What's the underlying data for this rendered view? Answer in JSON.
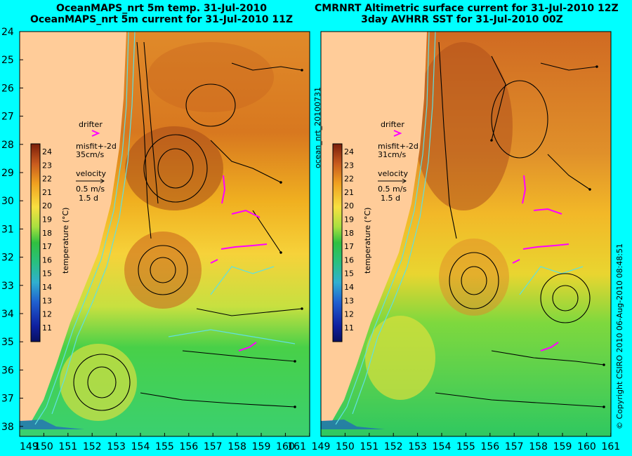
{
  "panels": [
    {
      "title_line1": "OceanMAPS_nrt 5m temp. 31-Jul-2010",
      "title_line2": "OceanMAPS_nrt 5m current for 31-Jul-2010 11Z",
      "drifter_label": "drifter",
      "misfit_label": "misfit+-2d",
      "misfit_speed": "35cm/s",
      "velocity_label": "velocity",
      "velocity_scale": "0.5 m/s",
      "velocity_time": "1.5 d"
    },
    {
      "title_line1": "CMRNRT Altimetric surface current for 31-Jul-2010 12Z",
      "title_line2": "3day AVHRR SST for 31-Jul-2010 00Z",
      "drifter_label": "drifter",
      "misfit_label": "misfit+-2d",
      "misfit_speed": "31cm/s",
      "velocity_label": "velocity",
      "velocity_scale": "0.5 m/s",
      "velocity_time": "1.5 d"
    }
  ],
  "colorbar": {
    "axis_label": "temperature (°C)",
    "ticks": [
      "24",
      "23",
      "22",
      "21",
      "20",
      "19",
      "18",
      "17",
      "16",
      "15",
      "14",
      "13",
      "12",
      "11"
    ]
  },
  "lat_ticks": [
    "24",
    "25",
    "26",
    "27",
    "28",
    "29",
    "30",
    "31",
    "32",
    "33",
    "34",
    "35",
    "36",
    "37",
    "38"
  ],
  "lon_ticks": [
    "149",
    "150",
    "151",
    "152",
    "153",
    "154",
    "155",
    "156",
    "157",
    "158",
    "159",
    "160",
    "161"
  ],
  "run_tag": "ocean_nrt_20100731",
  "copyright": "© Copyright CSIRO 2010   06-Aug-2010 08:48:51",
  "colors": {
    "background": "#00ffff",
    "land": "#ffcc99",
    "drifter": "#ff00ff"
  }
}
